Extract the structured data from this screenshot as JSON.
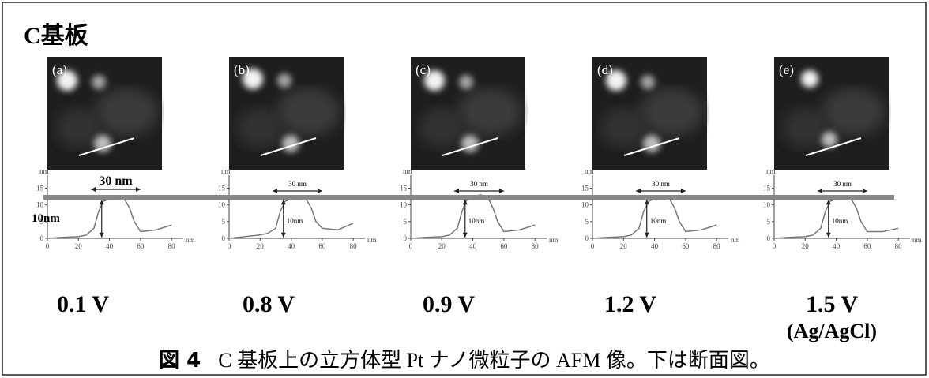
{
  "header": {
    "title": "C基板"
  },
  "profile_axes": {
    "y_unit": "nm",
    "x_unit": "nm",
    "xlim": [
      0,
      85
    ],
    "ylim": [
      0,
      17
    ],
    "xticks": [
      0,
      20,
      40,
      60,
      80
    ],
    "yticks": [
      0,
      5,
      10,
      15
    ]
  },
  "panels": [
    {
      "label": "(a)",
      "voltage": "0.1 V",
      "width_label": "30 nm",
      "height_label": "10nm",
      "profile": {
        "x": [
          0,
          10,
          20,
          25,
          30,
          33,
          36,
          40,
          45,
          50,
          53,
          56,
          60,
          70,
          80
        ],
        "y": [
          0,
          0.3,
          0.5,
          1,
          3,
          8,
          11,
          12,
          12,
          11.5,
          9,
          5,
          2,
          2.5,
          4
        ]
      }
    },
    {
      "label": "(b)",
      "voltage": "0.8 V",
      "width_label": "30 nm",
      "height_label": "10nm",
      "profile": {
        "x": [
          0,
          10,
          20,
          25,
          30,
          33,
          36,
          40,
          45,
          50,
          53,
          56,
          60,
          70,
          80
        ],
        "y": [
          0,
          0.5,
          1,
          1.5,
          3,
          8,
          11,
          12,
          12,
          11.5,
          9,
          5,
          3,
          2.5,
          4.5
        ]
      }
    },
    {
      "label": "(c)",
      "voltage": "0.9 V",
      "width_label": "30 nm",
      "height_label": "10nm",
      "profile": {
        "x": [
          0,
          10,
          20,
          25,
          30,
          33,
          36,
          40,
          45,
          50,
          53,
          56,
          60,
          70,
          80
        ],
        "y": [
          0,
          0.3,
          0.5,
          1,
          3,
          8,
          11.5,
          12.5,
          13,
          12,
          9,
          5,
          2,
          2.5,
          4
        ]
      }
    },
    {
      "label": "(d)",
      "voltage": "1.2 V",
      "width_label": "30 nm",
      "height_label": "10nm",
      "profile": {
        "x": [
          0,
          10,
          20,
          25,
          30,
          33,
          36,
          40,
          45,
          50,
          53,
          56,
          60,
          70,
          80
        ],
        "y": [
          0,
          0.3,
          0.5,
          1,
          3,
          8,
          11,
          12,
          12,
          11.5,
          9,
          5,
          2,
          2.5,
          4
        ]
      }
    },
    {
      "label": "(e)",
      "voltage": "1.5 V",
      "reference": "(Ag/AgCl)",
      "width_label": "30 nm",
      "height_label": "10nm",
      "profile": {
        "x": [
          0,
          10,
          20,
          25,
          30,
          33,
          36,
          40,
          45,
          50,
          53,
          56,
          60,
          70,
          80
        ],
        "y": [
          0,
          0.3,
          0.5,
          1,
          3,
          8,
          11,
          12,
          12,
          11.5,
          9,
          5,
          2,
          2,
          3
        ]
      }
    }
  ],
  "caption": {
    "number": "図 4",
    "text": "C 基板上の立方体型 Pt ナノ微粒子の AFM 像。下は断面図。"
  }
}
